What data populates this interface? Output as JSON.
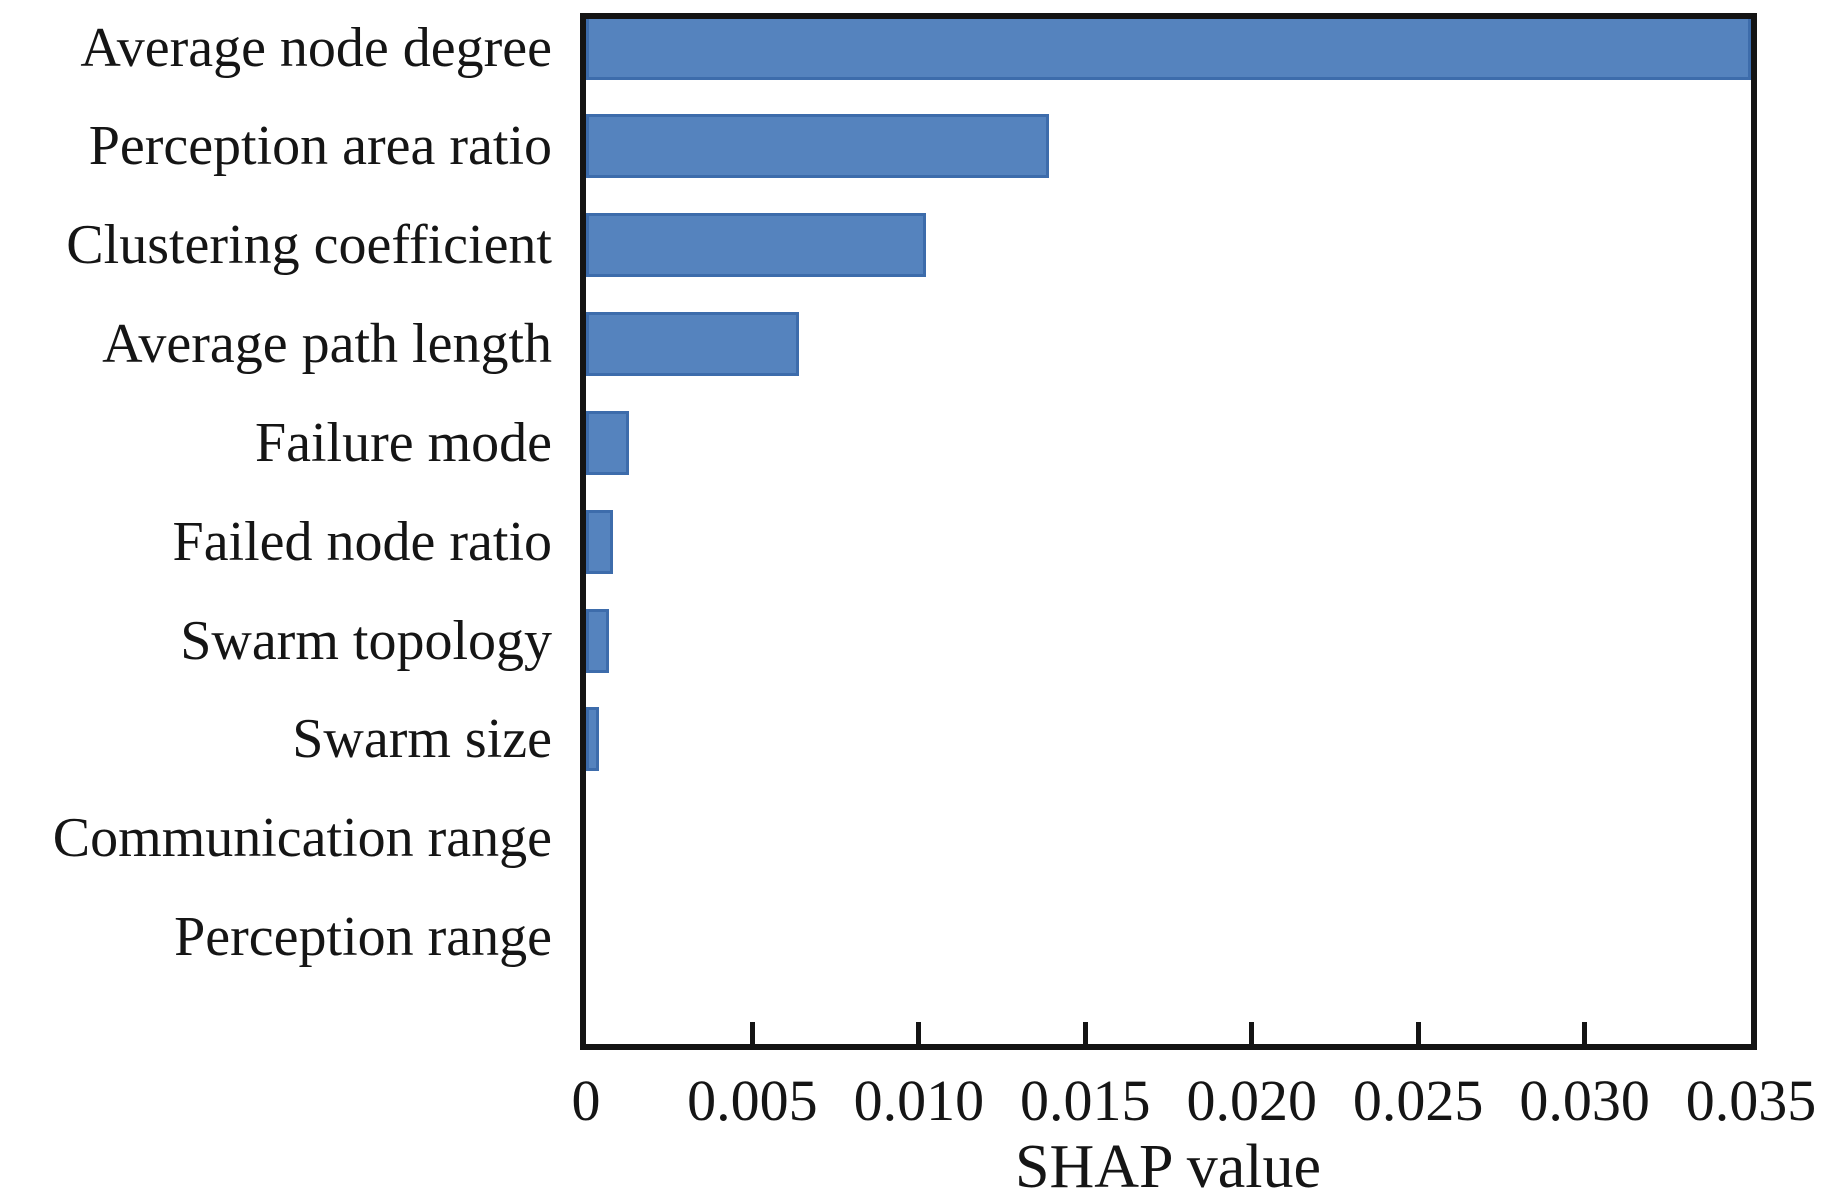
{
  "chart_data": {
    "type": "bar",
    "orientation": "horizontal",
    "title": "",
    "xlabel": "SHAP value",
    "ylabel": "",
    "categories": [
      "Average node degree",
      "Perception area ratio",
      "Clustering coefficient",
      "Average path length",
      "Failure mode",
      "Failed node ratio",
      "Swarm topology",
      "Swarm size",
      "Communication range",
      "Perception range"
    ],
    "values": [
      0.035,
      0.0139,
      0.0102,
      0.0064,
      0.0013,
      0.0008,
      0.0007,
      0.0004,
      0.0,
      0.0
    ],
    "xlim": [
      0,
      0.035
    ],
    "xticks": [
      0,
      0.005,
      0.01,
      0.015,
      0.02,
      0.025,
      0.03,
      0.035
    ],
    "xtick_labels": [
      "0",
      "0.005",
      "0.010",
      "0.015",
      "0.020",
      "0.025",
      "0.030",
      "0.035"
    ],
    "grid": false,
    "legend": "none",
    "colors": {
      "bar_fill": "#5583be",
      "bar_border": "#3d6cab",
      "axis": "#141414",
      "text": "#151515"
    }
  }
}
